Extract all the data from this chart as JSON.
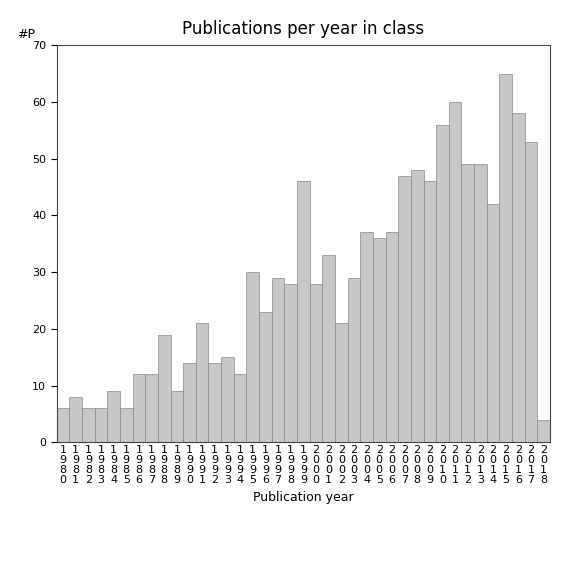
{
  "title": "Publications per year in class",
  "xlabel": "Publication year",
  "ylabel": "#P",
  "years": [
    "1980",
    "1981",
    "1982",
    "1983",
    "1984",
    "1985",
    "1986",
    "1987",
    "1988",
    "1989",
    "1990",
    "1991",
    "1992",
    "1993",
    "1994",
    "1995",
    "1996",
    "1997",
    "1998",
    "1999",
    "2000",
    "2001",
    "2002",
    "2003",
    "2004",
    "2005",
    "2006",
    "2007",
    "2008",
    "2009",
    "2010",
    "2011",
    "2012",
    "2013",
    "2014",
    "2015",
    "2016",
    "2017",
    "2018"
  ],
  "values": [
    6,
    8,
    6,
    6,
    9,
    6,
    12,
    12,
    19,
    9,
    14,
    21,
    14,
    15,
    12,
    30,
    23,
    29,
    28,
    46,
    28,
    33,
    21,
    29,
    37,
    36,
    37,
    47,
    48,
    46,
    56,
    60,
    49,
    49,
    42,
    65,
    58,
    53,
    4
  ],
  "bar_color": "#c8c8c8",
  "bar_edgecolor": "#888888",
  "background_color": "#ffffff",
  "ylim": [
    0,
    70
  ],
  "yticks": [
    0,
    10,
    20,
    30,
    40,
    50,
    60,
    70
  ],
  "title_fontsize": 12,
  "label_fontsize": 9,
  "tick_fontsize": 8
}
